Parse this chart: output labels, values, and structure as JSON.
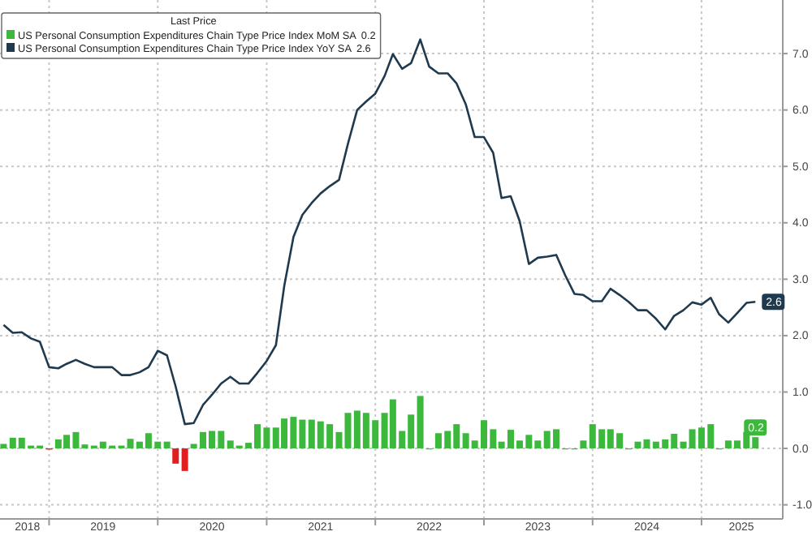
{
  "chart_data": {
    "type": "bar",
    "legend_title": "Last Price",
    "legend": "top left",
    "grid": true,
    "xlim": [
      "2018-07-20",
      "2025-10-01"
    ],
    "xticks": [
      {
        "value": "2018-10-20",
        "label": "2018"
      },
      {
        "value": "2019-01-01",
        "label": null
      },
      {
        "value": "2019-07-01",
        "label": "2019"
      },
      {
        "value": "2020-01-01",
        "label": null
      },
      {
        "value": "2020-07-01",
        "label": "2020"
      },
      {
        "value": "2021-01-01",
        "label": null
      },
      {
        "value": "2021-07-01",
        "label": "2021"
      },
      {
        "value": "2022-01-01",
        "label": null
      },
      {
        "value": "2022-07-01",
        "label": "2022"
      },
      {
        "value": "2023-01-01",
        "label": null
      },
      {
        "value": "2023-07-01",
        "label": "2023"
      },
      {
        "value": "2024-01-01",
        "label": null
      },
      {
        "value": "2024-07-01",
        "label": "2024"
      },
      {
        "value": "2025-01-01",
        "label": null
      },
      {
        "value": "2025-05-15",
        "label": "2025"
      }
    ],
    "ylim": [
      -1.25,
      7.95
    ],
    "yticks": [
      {
        "value": -1,
        "label": "-1.0"
      },
      {
        "value": 0,
        "label": "0.0"
      },
      {
        "value": 1,
        "label": "1.0"
      },
      {
        "value": 2,
        "label": "2.0"
      },
      {
        "value": 3,
        "label": "3.0"
      },
      {
        "value": 4,
        "label": "4.0"
      },
      {
        "value": 5,
        "label": "5.0"
      },
      {
        "value": 6,
        "label": "6.0"
      },
      {
        "value": 7,
        "label": "7.0"
      }
    ],
    "x": [
      "2018-08",
      "2018-09",
      "2018-10",
      "2018-11",
      "2018-12",
      "2019-01",
      "2019-02",
      "2019-03",
      "2019-04",
      "2019-05",
      "2019-06",
      "2019-07",
      "2019-08",
      "2019-09",
      "2019-10",
      "2019-11",
      "2019-12",
      "2020-01",
      "2020-02",
      "2020-03",
      "2020-04",
      "2020-05",
      "2020-06",
      "2020-07",
      "2020-08",
      "2020-09",
      "2020-10",
      "2020-11",
      "2020-12",
      "2021-01",
      "2021-02",
      "2021-03",
      "2021-04",
      "2021-05",
      "2021-06",
      "2021-07",
      "2021-08",
      "2021-09",
      "2021-10",
      "2021-11",
      "2021-12",
      "2022-01",
      "2022-02",
      "2022-03",
      "2022-04",
      "2022-05",
      "2022-06",
      "2022-07",
      "2022-08",
      "2022-09",
      "2022-10",
      "2022-11",
      "2022-12",
      "2023-01",
      "2023-02",
      "2023-03",
      "2023-04",
      "2023-05",
      "2023-06",
      "2023-07",
      "2023-08",
      "2023-09",
      "2023-10",
      "2023-11",
      "2023-12",
      "2024-01",
      "2024-02",
      "2024-03",
      "2024-04",
      "2024-05",
      "2024-06",
      "2024-07",
      "2024-08",
      "2024-09",
      "2024-10",
      "2024-11",
      "2024-12",
      "2025-01",
      "2025-02",
      "2025-03",
      "2025-04",
      "2025-05",
      "2025-06",
      "2025-07"
    ],
    "series": [
      {
        "name": "US Personal Consumption Expenditures Chain Type Price Index MoM SA",
        "color": "#3cb83c",
        "values": [
          0.08,
          0.19,
          0.19,
          0.05,
          0.05,
          -0.02,
          0.16,
          0.24,
          0.29,
          0.07,
          0.05,
          0.12,
          0.05,
          0.05,
          0.17,
          0.12,
          0.27,
          0.12,
          0.12,
          -0.27,
          -0.4,
          0.08,
          0.29,
          0.31,
          0.31,
          0.14,
          0.05,
          0.1,
          0.43,
          0.37,
          0.37,
          0.53,
          0.56,
          0.51,
          0.51,
          0.48,
          0.43,
          0.29,
          0.63,
          0.67,
          0.63,
          0.5,
          0.63,
          0.87,
          0.31,
          0.6,
          0.93,
          0.0,
          0.27,
          0.31,
          0.43,
          0.27,
          0.14,
          0.5,
          0.34,
          0.12,
          0.33,
          0.14,
          0.24,
          0.14,
          0.31,
          0.34,
          0.0,
          0.0,
          0.14,
          0.43,
          0.34,
          0.34,
          0.27,
          0.0,
          0.12,
          0.16,
          0.12,
          0.16,
          0.26,
          0.12,
          0.34,
          0.37,
          0.43,
          0.0,
          0.14,
          0.14,
          0.29,
          0.2
        ],
        "colors": [
          "#3cb83c",
          "#3cb83c",
          "#3cb83c",
          "#3cb83c",
          "#3cb83c",
          "#e02020",
          "#3cb83c",
          "#3cb83c",
          "#3cb83c",
          "#3cb83c",
          "#3cb83c",
          "#3cb83c",
          "#3cb83c",
          "#3cb83c",
          "#3cb83c",
          "#3cb83c",
          "#3cb83c",
          "#3cb83c",
          "#3cb83c",
          "#e02020",
          "#e02020",
          "#3cb83c",
          "#3cb83c",
          "#3cb83c",
          "#3cb83c",
          "#3cb83c",
          "#3cb83c",
          "#3cb83c",
          "#3cb83c",
          "#3cb83c",
          "#3cb83c",
          "#3cb83c",
          "#3cb83c",
          "#3cb83c",
          "#3cb83c",
          "#3cb83c",
          "#3cb83c",
          "#3cb83c",
          "#3cb83c",
          "#3cb83c",
          "#3cb83c",
          "#3cb83c",
          "#3cb83c",
          "#3cb83c",
          "#3cb83c",
          "#3cb83c",
          "#3cb83c",
          "#3cb83c",
          "#3cb83c",
          "#3cb83c",
          "#3cb83c",
          "#3cb83c",
          "#3cb83c",
          "#3cb83c",
          "#3cb83c",
          "#3cb83c",
          "#3cb83c",
          "#3cb83c",
          "#3cb83c",
          "#3cb83c",
          "#3cb83c",
          "#3cb83c",
          "#3cb83c",
          "#3cb83c",
          "#3cb83c",
          "#3cb83c",
          "#3cb83c",
          "#3cb83c",
          "#3cb83c",
          "#3cb83c",
          "#3cb83c",
          "#3cb83c",
          "#3cb83c",
          "#3cb83c",
          "#3cb83c",
          "#3cb83c",
          "#3cb83c",
          "#3cb83c",
          "#3cb83c",
          "#3cb83c",
          "#3cb83c",
          "#3cb83c",
          "#3cb83c",
          "#3cb83c"
        ],
        "value_labels": [
          null,
          null,
          null,
          null,
          null,
          null,
          null,
          null,
          null,
          null,
          null,
          null,
          null,
          null,
          null,
          null,
          null,
          null,
          null,
          null,
          null,
          null,
          null,
          null,
          null,
          null,
          null,
          null,
          null,
          null,
          null,
          null,
          null,
          null,
          null,
          null,
          null,
          null,
          null,
          null,
          null,
          null,
          null,
          null,
          null,
          null,
          null,
          null,
          null,
          null,
          null,
          null,
          null,
          null,
          null,
          null,
          null,
          null,
          null,
          null,
          null,
          null,
          null,
          null,
          null,
          null,
          null,
          null,
          null,
          null,
          null,
          null,
          null,
          null,
          null,
          null,
          null,
          null,
          null,
          null,
          null,
          null,
          null,
          "0.2"
        ]
      },
      {
        "type": "line",
        "name": "US Personal Consumption Expenditures Chain Type Price Index YoY SA",
        "color": "#1f3a4f",
        "values": [
          2.19,
          2.05,
          2.06,
          1.95,
          1.89,
          1.44,
          1.42,
          1.5,
          1.57,
          1.5,
          1.44,
          1.44,
          1.44,
          1.3,
          1.3,
          1.35,
          1.44,
          1.73,
          1.65,
          1.1,
          0.43,
          0.45,
          0.77,
          0.95,
          1.15,
          1.27,
          1.15,
          1.15,
          1.34,
          1.55,
          1.83,
          2.88,
          3.75,
          4.14,
          4.35,
          4.52,
          4.65,
          4.76,
          5.4,
          6.0,
          6.15,
          6.29,
          6.6,
          6.99,
          6.73,
          6.83,
          7.25,
          6.77,
          6.65,
          6.65,
          6.47,
          6.1,
          5.52,
          5.52,
          5.24,
          4.44,
          4.47,
          4.03,
          3.27,
          3.38,
          3.4,
          3.43,
          3.07,
          2.74,
          2.72,
          2.61,
          2.61,
          2.83,
          2.72,
          2.6,
          2.45,
          2.45,
          2.3,
          2.11,
          2.35,
          2.45,
          2.59,
          2.55,
          2.67,
          2.38,
          2.23,
          2.4,
          2.58,
          2.6
        ],
        "value_labels": [
          null,
          null,
          null,
          null,
          null,
          null,
          null,
          null,
          null,
          null,
          null,
          null,
          null,
          null,
          null,
          null,
          null,
          null,
          null,
          null,
          null,
          null,
          null,
          null,
          null,
          null,
          null,
          null,
          null,
          null,
          null,
          null,
          null,
          null,
          null,
          null,
          null,
          null,
          null,
          null,
          null,
          null,
          null,
          null,
          null,
          null,
          null,
          null,
          null,
          null,
          null,
          null,
          null,
          null,
          null,
          null,
          null,
          null,
          null,
          null,
          null,
          null,
          null,
          null,
          null,
          null,
          null,
          null,
          null,
          null,
          null,
          null,
          null,
          null,
          null,
          null,
          null,
          null,
          null,
          null,
          null,
          null,
          null,
          "2.6"
        ]
      }
    ]
  }
}
